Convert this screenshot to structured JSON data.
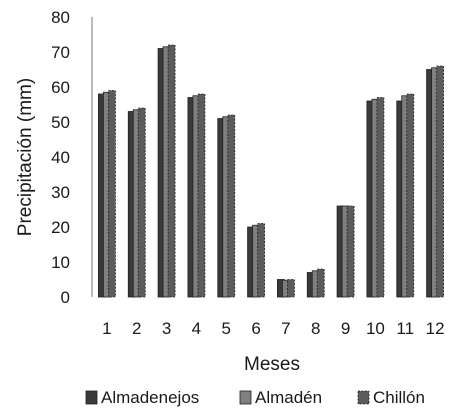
{
  "chart_data": {
    "type": "bar",
    "title": "",
    "xlabel": "Meses",
    "ylabel": "Precipitación (mm)",
    "ylim": [
      0,
      80
    ],
    "yticks": [
      0,
      10,
      20,
      30,
      40,
      50,
      60,
      70,
      80
    ],
    "categories": [
      "1",
      "2",
      "3",
      "4",
      "5",
      "6",
      "7",
      "8",
      "9",
      "10",
      "11",
      "12"
    ],
    "series": [
      {
        "name": "Almadenejos",
        "color": "#3a3a3a",
        "values": [
          58,
          53,
          71,
          57,
          51,
          20,
          5,
          7,
          26,
          56,
          56,
          65
        ]
      },
      {
        "name": "Almadén",
        "color": "#7f7f7f",
        "values": [
          58.5,
          53.5,
          71.5,
          57.5,
          51.5,
          20.5,
          4.8,
          7.5,
          26,
          56.5,
          57.5,
          65.5
        ]
      },
      {
        "name": "Chillón",
        "color": "#5c5c5c",
        "values": [
          59,
          54,
          72,
          58,
          52,
          21,
          5,
          8,
          26,
          57,
          58,
          66
        ]
      }
    ],
    "grid": false,
    "legend_position": "bottom"
  }
}
